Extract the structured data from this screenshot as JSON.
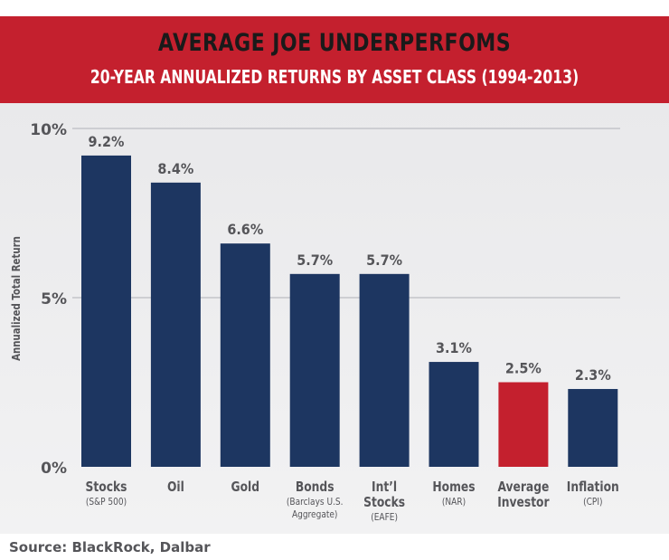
{
  "title": "AVERAGE JOE UNDERPERFOMS",
  "subtitle": "20-YEAR ANNUALIZED RETURNS BY ASSET CLASS (1994-2013)",
  "source": "Source: BlackRock, Dalbar",
  "colors": {
    "header": "#c4202e",
    "bar_default": "#1d3661",
    "bar_highlight": "#c4202e",
    "label_text": "#555559"
  },
  "chart_data": {
    "type": "bar",
    "ylabel": "Annualized Total Return",
    "ylim": [
      0,
      10
    ],
    "yticks": [
      {
        "value": 0,
        "label": "0%"
      },
      {
        "value": 5,
        "label": "5%"
      },
      {
        "value": 10,
        "label": "10%"
      }
    ],
    "grid": true,
    "categories": [
      {
        "name": "Stocks",
        "sub": [
          "(S&P 500)"
        ]
      },
      {
        "name": "Oil",
        "sub": []
      },
      {
        "name": "Gold",
        "sub": []
      },
      {
        "name": "Bonds",
        "sub": [
          "(Barclays U.S.",
          "Aggregate)"
        ]
      },
      {
        "name": "Int’l Stocks",
        "sub": [
          "(EAFE)"
        ]
      },
      {
        "name": "Homes",
        "sub": [
          "(NAR)"
        ]
      },
      {
        "name": "Average Investor",
        "sub": []
      },
      {
        "name": "Inflation",
        "sub": [
          "(CPI)"
        ]
      }
    ],
    "values": [
      9.2,
      8.4,
      6.6,
      5.7,
      5.7,
      3.1,
      2.5,
      2.3
    ],
    "value_labels": [
      "9.2%",
      "8.4%",
      "6.6%",
      "5.7%",
      "5.7%",
      "3.1%",
      "2.5%",
      "2.3%"
    ],
    "highlight_index": 6
  }
}
